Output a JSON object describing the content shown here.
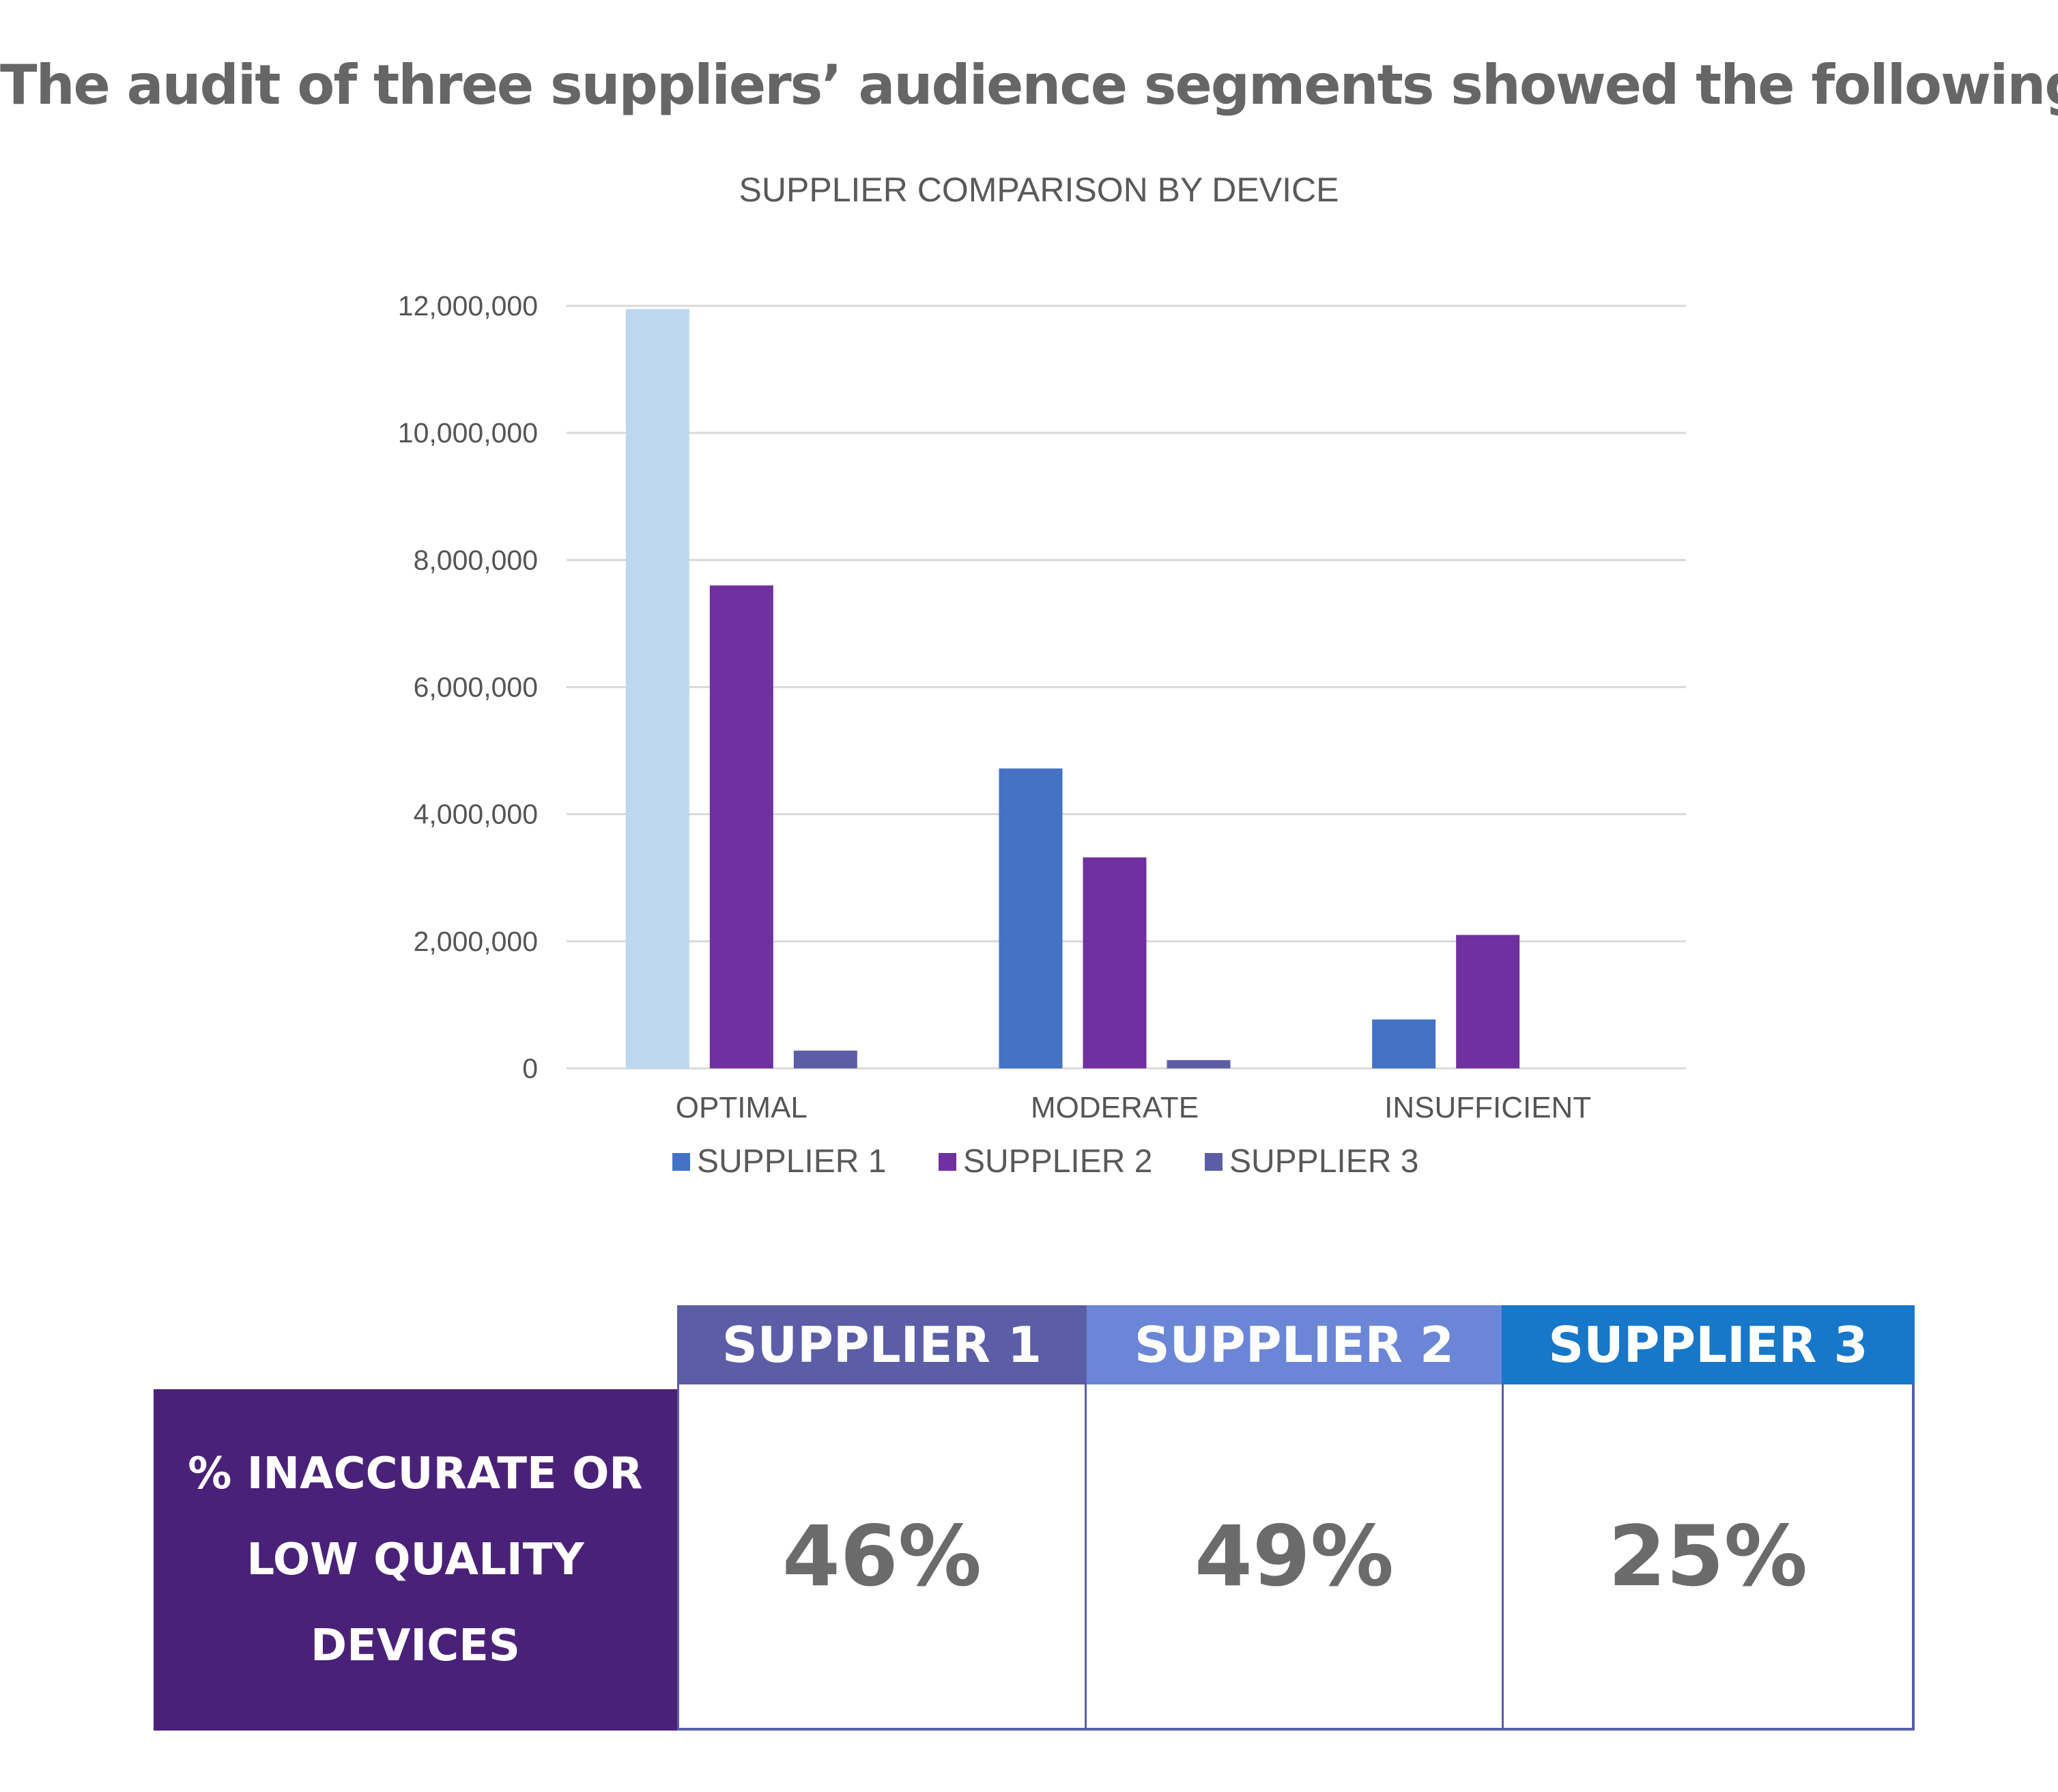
{
  "headline": "The audit of three suppliers’ audience segments showed the following:",
  "chart_data": {
    "type": "bar",
    "title": "SUPPLIER COMPARISON BY DEVICE",
    "categories": [
      "OPTIMAL",
      "MODERATE",
      "INSUFFICIENT"
    ],
    "series": [
      {
        "name": "SUPPLIER 1",
        "values": [
          11950000,
          4720000,
          770000
        ],
        "color": "#4472C4"
      },
      {
        "name": "SUPPLIER 2",
        "values": [
          7600000,
          3320000,
          2100000
        ],
        "color": "#7030A0"
      },
      {
        "name": "SUPPLIER 3",
        "values": [
          280000,
          130000,
          0
        ],
        "color": "#5B5EA6"
      }
    ],
    "highlight_color": "#BDD7EE",
    "highlighted_point": {
      "series": 0,
      "category": 0
    },
    "ylim": [
      0,
      12000000
    ],
    "yticks": [
      0,
      2000000,
      4000000,
      6000000,
      8000000,
      10000000,
      12000000
    ],
    "ytick_labels": [
      "0",
      "2,000,000",
      "4,000,000",
      "6,000,000",
      "8,000,000",
      "10,000,000",
      "12,000,000"
    ],
    "grid": true,
    "legend_position": "bottom"
  },
  "table": {
    "headers": [
      {
        "label": "SUPPLIER 1",
        "color": "#5B5EA6"
      },
      {
        "label": "SUPPLIER 2",
        "color": "#6B86D6"
      },
      {
        "label": "SUPPLIER 3",
        "color": "#1777C9"
      }
    ],
    "row_label_lines": [
      "% INACCURATE OR",
      "LOW QUALITY",
      "DEVICES"
    ],
    "row_label_color": "#4A2178",
    "values": [
      "46%",
      "49%",
      "25%"
    ]
  }
}
